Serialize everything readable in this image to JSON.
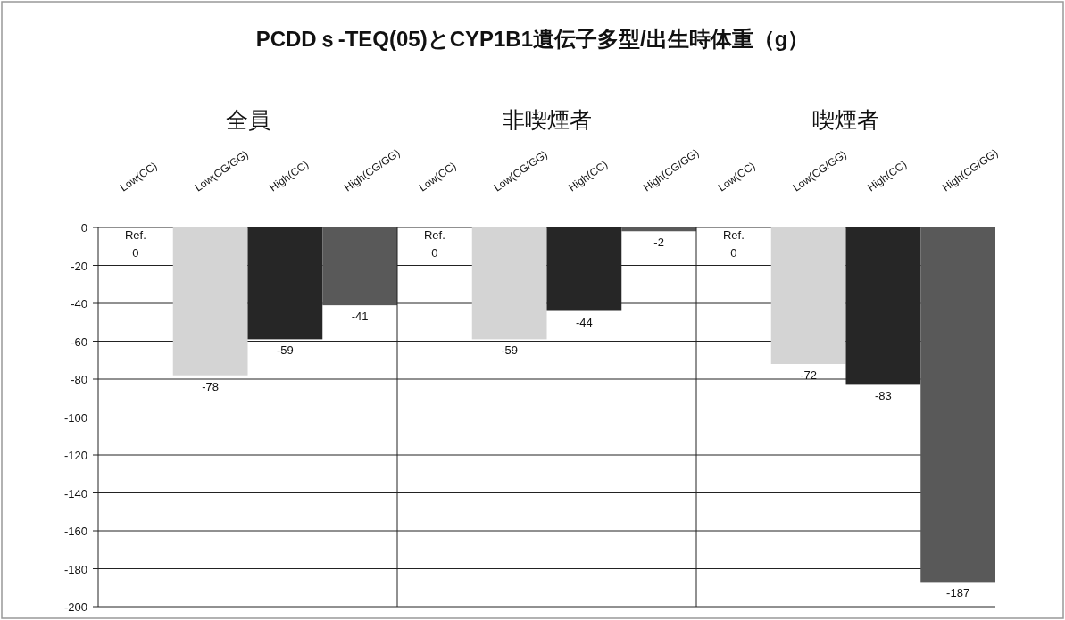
{
  "chart_data": [
    {
      "type": "bar",
      "title": "PCDDｓ-TEQ(05)とCYP1B1遺伝子多型/出生時体重（g）",
      "subtitle": "全員",
      "categories": [
        "Low(CC)",
        "Low(CG/GG)",
        "High(CC)",
        "High(CG/GG)"
      ],
      "values": [
        0,
        -78,
        -59,
        -41
      ],
      "colors": [
        "#bfbfbf",
        "#d4d4d4",
        "#262626",
        "#595959"
      ],
      "ylim": [
        -200,
        0
      ],
      "yticks": [
        -200,
        -180,
        -160,
        -140,
        -120,
        -100,
        -80,
        -60,
        -40,
        -20,
        0
      ],
      "grid": "y",
      "data_labels": true,
      "annotations": [
        {
          "text": "Ref.",
          "x": "Low(CC)",
          "y": 0
        }
      ]
    },
    {
      "type": "bar",
      "subtitle": "非喫煙者",
      "categories": [
        "Low(CC)",
        "Low(CG/GG)",
        "High(CC)",
        "High(CG/GG)"
      ],
      "values": [
        0,
        -59,
        -44,
        -2
      ],
      "colors": [
        "#bfbfbf",
        "#d4d4d4",
        "#262626",
        "#595959"
      ],
      "ylim": [
        -200,
        0
      ],
      "yticks": [
        -200,
        -180,
        -160,
        -140,
        -120,
        -100,
        -80,
        -60,
        -40,
        -20,
        0
      ],
      "grid": "y",
      "data_labels": true,
      "tick_labels": "x",
      "annotations": [
        {
          "text": "Ref.",
          "x": "Low(CC)",
          "y": 0
        }
      ]
    },
    {
      "type": "bar",
      "subtitle": "喫煙者",
      "categories": [
        "Low(CC)",
        "Low(CG/GG)",
        "High(CC)",
        "High(CG/GG)"
      ],
      "values": [
        0,
        -72,
        -83,
        -187
      ],
      "colors": [
        "#bfbfbf",
        "#d4d4d4",
        "#262626",
        "#595959"
      ],
      "ylim": [
        -200,
        0
      ],
      "yticks": [
        -200,
        -180,
        -160,
        -140,
        -120,
        -100,
        -80,
        -60,
        -40,
        -20,
        0
      ],
      "grid": "y",
      "data_labels": true,
      "tick_labels": "x",
      "annotations": [
        {
          "text": "Ref.",
          "x": "Low(CC)",
          "y": 0
        }
      ]
    }
  ]
}
